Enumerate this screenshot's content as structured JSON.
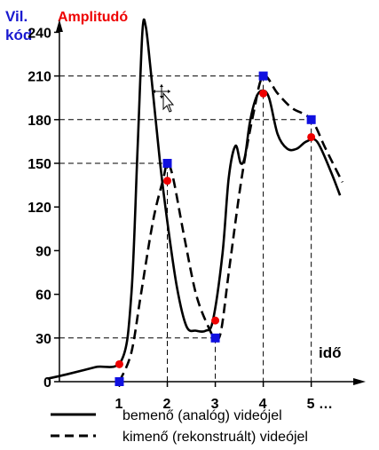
{
  "chart_data": {
    "type": "line",
    "ylabel_line1": "Vil.",
    "ylabel_line2": "kód",
    "title": "Amplitudó",
    "xlabel": "idő",
    "y_ticks": [
      0,
      30,
      60,
      90,
      120,
      150,
      180,
      210,
      240
    ],
    "y_tick_labels": [
      "0",
      "30",
      "60",
      "90",
      "120",
      "150",
      "180",
      "210",
      "240"
    ],
    "ylim": [
      0,
      250
    ],
    "xlim": [
      -0.6,
      5.95
    ],
    "x_tick_labels": [
      "1",
      "2",
      "3",
      "4",
      "5 …"
    ],
    "x_ticks": [
      1,
      2,
      3,
      4,
      5
    ],
    "guide_lines_at": [
      {
        "x": 2,
        "y": 150
      },
      {
        "x": 3,
        "y": 30
      },
      {
        "x": 4,
        "y": 210
      },
      {
        "x": 5,
        "y": 180
      }
    ],
    "series": [
      {
        "name": "bemenő (analóg) videójel",
        "style": "solid",
        "values": [
          [
            -0.5,
            2
          ],
          [
            -0.1,
            5
          ],
          [
            0.5,
            10
          ],
          [
            1.05,
            15
          ],
          [
            1.25,
            60
          ],
          [
            1.38,
            160
          ],
          [
            1.48,
            240
          ],
          [
            1.55,
            244
          ],
          [
            1.65,
            215
          ],
          [
            1.85,
            150
          ],
          [
            2.0,
            110
          ],
          [
            2.2,
            65
          ],
          [
            2.4,
            38
          ],
          [
            2.6,
            35
          ],
          [
            2.8,
            35
          ],
          [
            2.95,
            42
          ],
          [
            3.15,
            88
          ],
          [
            3.28,
            140
          ],
          [
            3.42,
            162
          ],
          [
            3.53,
            150
          ],
          [
            3.62,
            155
          ],
          [
            3.72,
            178
          ],
          [
            3.85,
            195
          ],
          [
            3.98,
            200
          ],
          [
            4.12,
            195
          ],
          [
            4.3,
            170
          ],
          [
            4.5,
            160
          ],
          [
            4.7,
            160
          ],
          [
            4.9,
            165
          ],
          [
            5.12,
            165
          ],
          [
            5.4,
            145
          ],
          [
            5.6,
            128
          ]
        ]
      },
      {
        "name": "kimenő (rekonstruált) videójel",
        "style": "dashed",
        "values": [
          [
            1.0,
            0
          ],
          [
            1.25,
            20
          ],
          [
            1.45,
            60
          ],
          [
            1.7,
            110
          ],
          [
            1.92,
            140
          ],
          [
            2.0,
            150
          ],
          [
            2.12,
            140
          ],
          [
            2.35,
            100
          ],
          [
            2.6,
            60
          ],
          [
            2.85,
            38
          ],
          [
            3.0,
            30
          ],
          [
            3.12,
            35
          ],
          [
            3.3,
            80
          ],
          [
            3.55,
            140
          ],
          [
            3.8,
            185
          ],
          [
            4.0,
            210
          ],
          [
            4.3,
            198
          ],
          [
            4.6,
            188
          ],
          [
            5.0,
            180
          ],
          [
            5.3,
            160
          ],
          [
            5.65,
            137
          ]
        ]
      }
    ],
    "sample_points_quantized": [
      {
        "x": 1,
        "y": 0
      },
      {
        "x": 2,
        "y": 150
      },
      {
        "x": 3,
        "y": 30
      },
      {
        "x": 4,
        "y": 210
      },
      {
        "x": 5,
        "y": 180
      }
    ],
    "sample_points_analog": [
      {
        "x": 1,
        "y": 12
      },
      {
        "x": 2,
        "y": 138
      },
      {
        "x": 3,
        "y": 42
      },
      {
        "x": 4,
        "y": 198
      },
      {
        "x": 5,
        "y": 168
      }
    ],
    "colors": {
      "quantized_marker": "#1010e0",
      "analog_marker": "#ee0000",
      "title": "#ee0000",
      "ylabel": "#1a1ad0",
      "axis": "#000000"
    }
  },
  "legend": {
    "solid_label": "bemenő (analóg) videójel",
    "dashed_label": "kimenő (rekonstruált) videójel"
  },
  "cursor_icon": "move-cursor-icon"
}
